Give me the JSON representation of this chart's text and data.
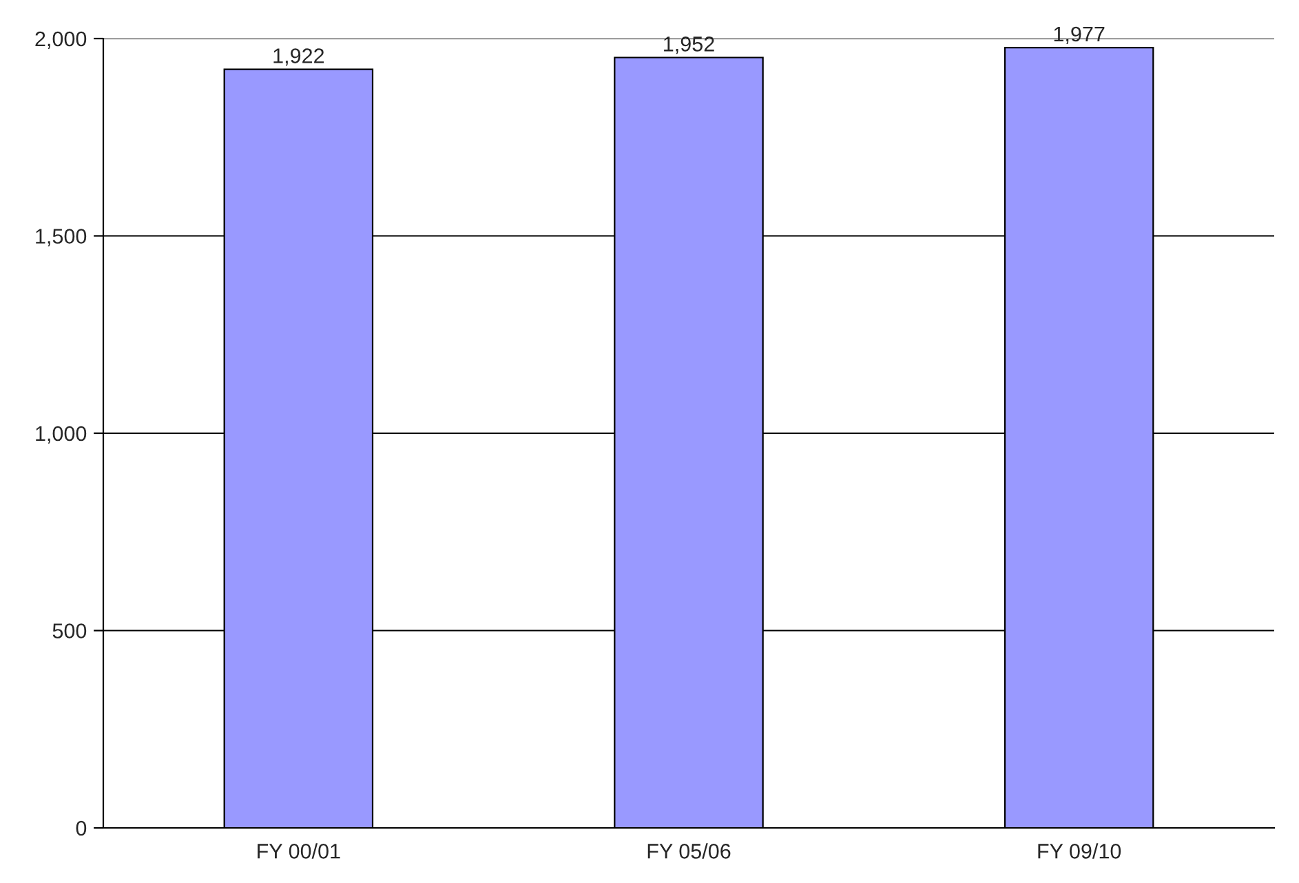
{
  "chart_data": {
    "type": "bar",
    "categories": [
      "FY 00/01",
      "FY 05/06",
      "FY 09/10"
    ],
    "values": [
      1922,
      1952,
      1977
    ],
    "color": "#9999ff",
    "ylim": [
      0,
      2000
    ],
    "yticks": [
      {
        "value": 0,
        "label": "0"
      },
      {
        "value": 500,
        "label": "500"
      },
      {
        "value": 1000,
        "label": "1,000"
      },
      {
        "value": 1500,
        "label": "1,500"
      },
      {
        "value": 2000,
        "label": "2,000"
      }
    ],
    "value_labels": [
      "1,922",
      "1,952",
      "1,977"
    ],
    "grid": "y"
  }
}
